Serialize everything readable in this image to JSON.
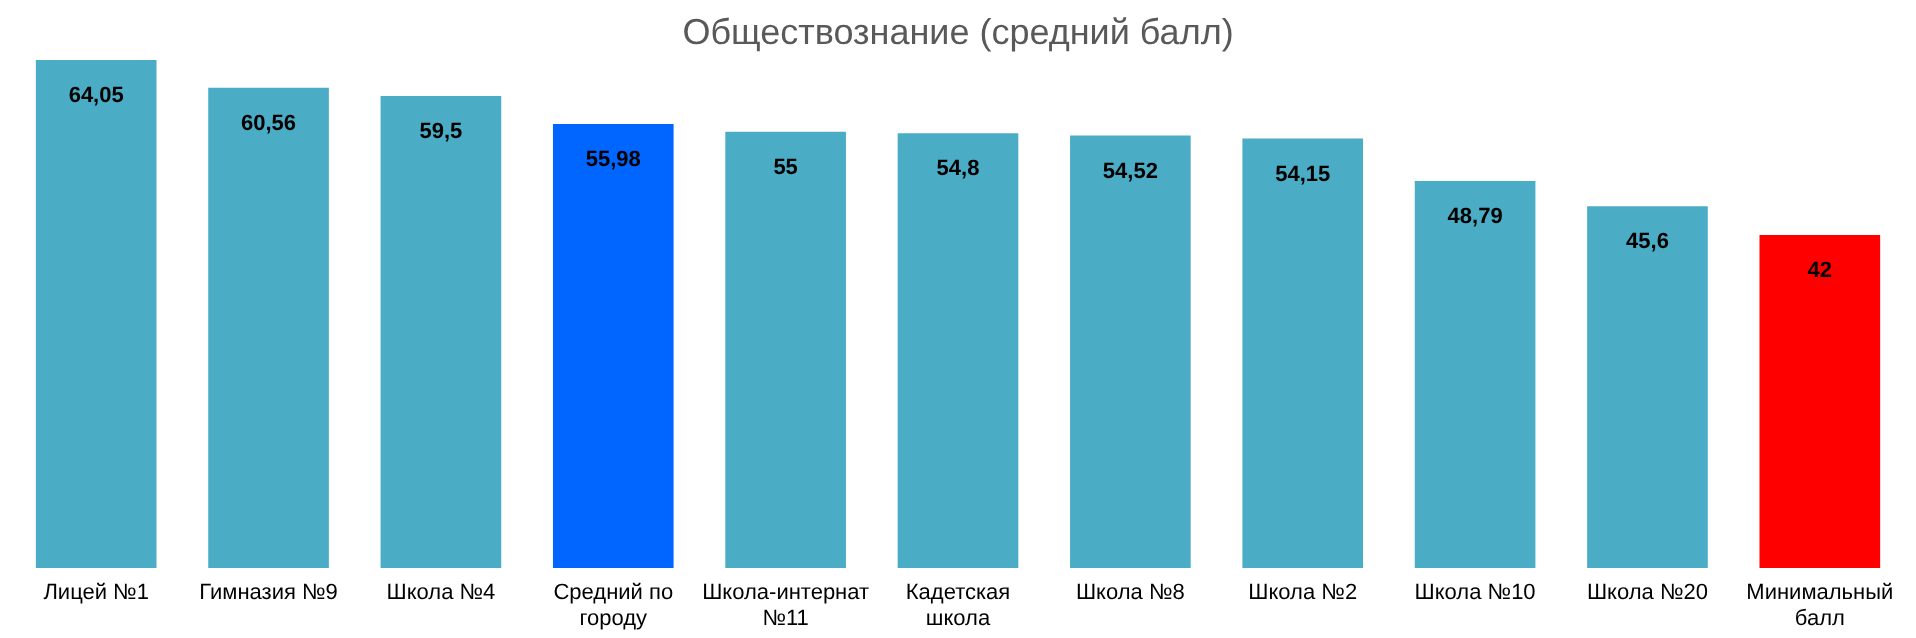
{
  "chart_data": {
    "type": "bar",
    "title": "Обществознание (средний балл)",
    "categories": [
      "Лицей №1",
      "Гимназия №9",
      "Школа №4",
      "Средний по городу",
      "Школа-интернат №11",
      "Кадетская школа",
      "Школа №8",
      "Школа №2",
      "Школа №10",
      "Школа №20",
      "Минимальный балл"
    ],
    "values": [
      64.05,
      60.56,
      59.5,
      55.98,
      55,
      54.8,
      54.52,
      54.15,
      48.79,
      45.6,
      42
    ],
    "value_labels": [
      "64,05",
      "60,56",
      "59,5",
      "55,98",
      "55",
      "54,8",
      "54,52",
      "54,15",
      "48,79",
      "45,6",
      "42"
    ],
    "colors": [
      "#4bacc6",
      "#4bacc6",
      "#4bacc6",
      "#0066ff",
      "#4bacc6",
      "#4bacc6",
      "#4bacc6",
      "#4bacc6",
      "#4bacc6",
      "#4bacc6",
      "#ff0000"
    ]
  }
}
